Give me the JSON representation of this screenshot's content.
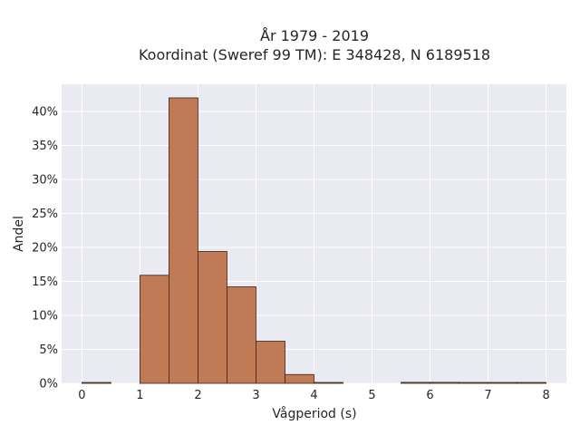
{
  "chart_data": {
    "type": "bar",
    "title_lines": [
      "År 1979 - 2019",
      "Koordinat (Sweref 99 TM): E 348428, N 6189518"
    ],
    "xlabel": "Vågperiod (s)",
    "ylabel": "Andel",
    "xlim": [
      -0.35,
      8.35
    ],
    "ylim": [
      0,
      44
    ],
    "xticks": [
      0,
      1,
      2,
      3,
      4,
      5,
      6,
      7,
      8
    ],
    "yticks": [
      0,
      5,
      10,
      15,
      20,
      25,
      30,
      35,
      40
    ],
    "ytick_format": "percent",
    "bin_width": 0.5,
    "bins": [
      {
        "x0": 0.0,
        "value": 0.1
      },
      {
        "x0": 0.5,
        "value": 0.0
      },
      {
        "x0": 1.0,
        "value": 15.9
      },
      {
        "x0": 1.5,
        "value": 42.0
      },
      {
        "x0": 2.0,
        "value": 19.4
      },
      {
        "x0": 2.5,
        "value": 14.2
      },
      {
        "x0": 3.0,
        "value": 6.2
      },
      {
        "x0": 3.5,
        "value": 1.3
      },
      {
        "x0": 4.0,
        "value": 0.1
      },
      {
        "x0": 4.5,
        "value": 0.0
      },
      {
        "x0": 5.0,
        "value": 0.0
      },
      {
        "x0": 5.5,
        "value": 0.15
      },
      {
        "x0": 6.0,
        "value": 0.15
      },
      {
        "x0": 6.5,
        "value": 0.02
      },
      {
        "x0": 7.0,
        "value": 0.05
      },
      {
        "x0": 7.5,
        "value": 0.05
      }
    ],
    "grid": true,
    "colors": {
      "bar_fill": "#c07a56",
      "bar_edge": "#3a2418",
      "plot_bg": "#eaeaf2",
      "grid": "#ffffff"
    }
  }
}
